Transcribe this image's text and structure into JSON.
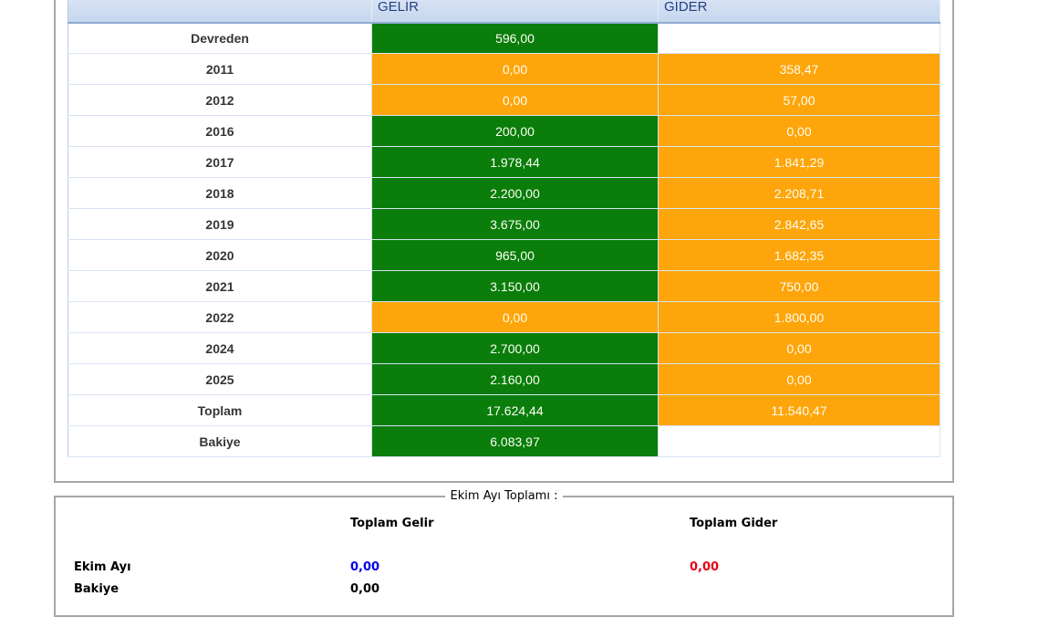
{
  "table": {
    "columns": [
      "",
      "GELİR",
      "GİDER"
    ],
    "rows": [
      {
        "label": "Devreden",
        "gelir": "596,00",
        "gider": ""
      },
      {
        "label": "2011",
        "gelir": "0,00",
        "gider": "358,47"
      },
      {
        "label": "2012",
        "gelir": "0,00",
        "gider": "57,00"
      },
      {
        "label": "2016",
        "gelir": "200,00",
        "gider": "0,00"
      },
      {
        "label": "2017",
        "gelir": "1.978,44",
        "gider": "1.841,29"
      },
      {
        "label": "2018",
        "gelir": "2.200,00",
        "gider": "2.208,71"
      },
      {
        "label": "2019",
        "gelir": "3.675,00",
        "gider": "2.842,65"
      },
      {
        "label": "2020",
        "gelir": "965,00",
        "gider": "1.682,35"
      },
      {
        "label": "2021",
        "gelir": "3.150,00",
        "gider": "750,00"
      },
      {
        "label": "2022",
        "gelir": "0,00",
        "gider": "1.800,00"
      },
      {
        "label": "2024",
        "gelir": "2.700,00",
        "gider": "0,00"
      },
      {
        "label": "2025",
        "gelir": "2.160,00",
        "gider": "0,00"
      },
      {
        "label": "Toplam",
        "gelir": "17.624,44",
        "gider": "11.540,47"
      },
      {
        "label": "Bakiye",
        "gelir": "6.083,97",
        "gider": ""
      }
    ]
  },
  "summary": {
    "legend": "Ekim Ayı Toplamı :",
    "header_gelir": "Toplam Gelir",
    "header_gider": "Toplam Gider",
    "rows": [
      {
        "label": "Ekim Ayı",
        "gelir": "0,00",
        "gider": "0,00"
      },
      {
        "label": "Bakiye",
        "gelir": "0,00",
        "gider": ""
      }
    ]
  },
  "colors": {
    "income_positive": "#0a7d0a",
    "expense_or_zero": "#fda50a",
    "header_text": "#253f85",
    "month_income_value": "#0000ee",
    "month_expense_value": "#e80017"
  }
}
